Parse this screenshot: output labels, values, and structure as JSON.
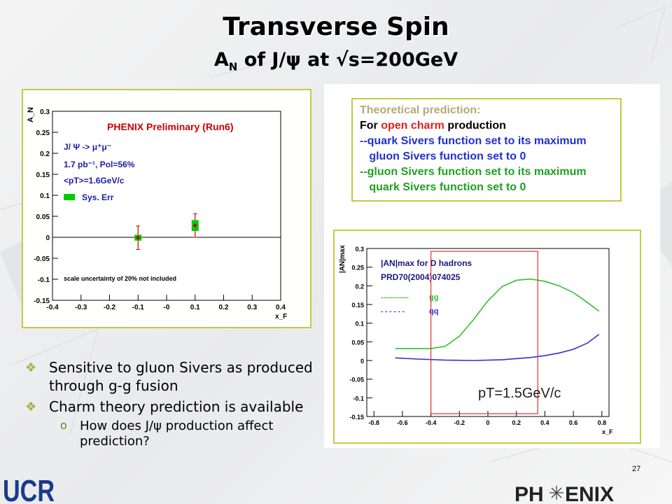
{
  "slide": {
    "title": "Transverse Spin",
    "subtitle_main": "A",
    "subtitle_sub": "N",
    "subtitle_rest": " of J/ψ  at √s=200GeV",
    "page_number": "27"
  },
  "theory_box": {
    "lines": [
      {
        "text": "Theoretical prediction:",
        "color": "#b8a878"
      },
      {
        "text_parts": [
          [
            "For ",
            "#000000"
          ],
          [
            "open charm",
            "#e02020"
          ],
          [
            " production",
            "#000000"
          ]
        ]
      },
      {
        "text": "--quark Sivers function set to its maximum",
        "color": "#2030d0"
      },
      {
        "text": "   gluon Sivers function set to 0",
        "color": "#2030d0"
      },
      {
        "text": "--gluon Sivers function set to its maximum",
        "color": "#20a020"
      },
      {
        "text": "   quark Sivers function set to 0",
        "color": "#20a020"
      }
    ]
  },
  "bullets": [
    {
      "text": "Sensitive to gluon Sivers as produced through g-g fusion"
    },
    {
      "text": "Charm theory prediction is available"
    }
  ],
  "sub_bullet": {
    "text": "How does J/ψ production affect prediction?"
  },
  "logos": {
    "left": "UCR",
    "right_a": "PH",
    "right_b": "ENIX"
  },
  "chart_data": [
    {
      "type": "scatter",
      "title": "PHENIX Preliminary (Run6)",
      "ylabel": "A_N",
      "xlabel": "x_F",
      "xlim": [
        -0.4,
        0.4
      ],
      "ylim": [
        -0.15,
        0.3
      ],
      "x_ticks": [
        "-0.4",
        "-0.3",
        "-0.2",
        "-0.1",
        "-0",
        "0.1",
        "0.2",
        "0.3",
        "0.4"
      ],
      "y_ticks": [
        "-0.15",
        "-0.1",
        "-0.05",
        "0",
        "0.05",
        "0.1",
        "0.15",
        "0.2",
        "0.25",
        "0.3"
      ],
      "points": [
        {
          "x": -0.1,
          "y": -0.001,
          "err": 0.028,
          "sys": 0.007
        },
        {
          "x": 0.1,
          "y": 0.028,
          "err": 0.028,
          "sys": 0.013
        }
      ],
      "annotations": {
        "decay": "J/ Ψ -> μ⁺μ⁻",
        "lumi": "1.7 pb⁻¹, Pol=56%",
        "pt": "<pT>=1.6GeV/c",
        "sys_label": "Sys. Err",
        "note": "scale uncertainty of 20% not included"
      },
      "colors": {
        "point": "#cc0000",
        "sys": "#00cc00",
        "title": "#cc0000",
        "text": "#1a1aa8"
      }
    },
    {
      "type": "line",
      "title": "|AN|max for D hadrons",
      "ref": "PRD70(2004)074025",
      "ylabel": "|AN|max",
      "xlabel": "x_F",
      "xlim": [
        -0.85,
        0.85
      ],
      "ylim": [
        -0.15,
        0.3
      ],
      "x_ticks": [
        "-0.8",
        "-0.6",
        "-0.4",
        "-0.2",
        "0",
        "0.2",
        "0.4",
        "0.6",
        "0.8"
      ],
      "y_ticks": [
        "-0.15",
        "-0.1",
        "-0.05",
        "0",
        "0.05",
        "0.1",
        "0.15",
        "0.2",
        "0.25",
        "0.3"
      ],
      "pt_label": "pT=1.5GeV/c",
      "series": [
        {
          "name": "gg",
          "legend_dash": "------------",
          "color": "#30c030",
          "x": [
            -0.65,
            -0.5,
            -0.4,
            -0.3,
            -0.2,
            -0.1,
            0.0,
            0.1,
            0.2,
            0.3,
            0.4,
            0.5,
            0.6,
            0.7,
            0.78
          ],
          "y": [
            0.032,
            0.032,
            0.032,
            0.038,
            0.065,
            0.11,
            0.16,
            0.198,
            0.215,
            0.218,
            0.212,
            0.2,
            0.182,
            0.155,
            0.132
          ]
        },
        {
          "name": "qq",
          "legend_dash": "- - - - - -",
          "color": "#3030d0",
          "x": [
            -0.65,
            -0.5,
            -0.3,
            -0.1,
            0.1,
            0.3,
            0.4,
            0.5,
            0.6,
            0.7,
            0.78
          ],
          "y": [
            0.007,
            0.004,
            0.001,
            0.0,
            0.002,
            0.008,
            0.013,
            0.02,
            0.03,
            0.047,
            0.07
          ]
        }
      ],
      "highlight_xrange": [
        -0.4,
        0.35
      ],
      "colors": {
        "highlight": "#e03030",
        "text": "#1a1a80"
      }
    }
  ]
}
